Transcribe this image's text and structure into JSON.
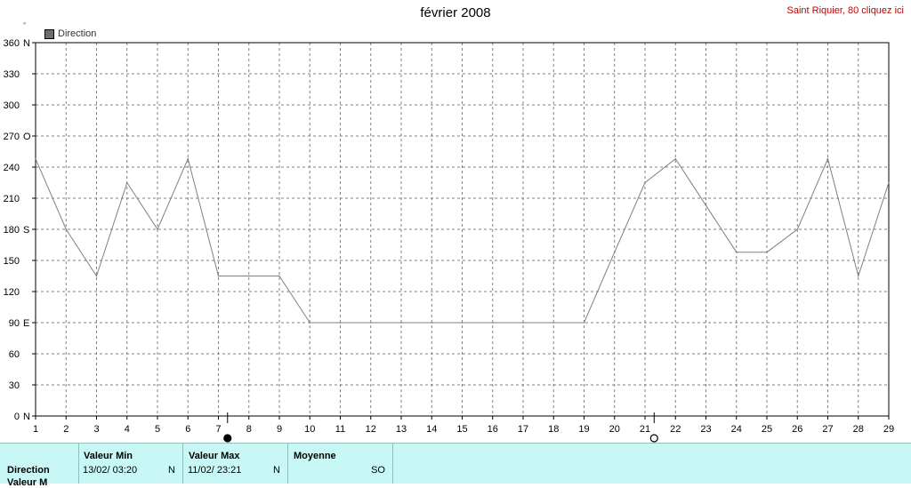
{
  "header": {
    "title": "février 2008",
    "station_link": "Saint Riquier, 80 cliquez ici",
    "degree_symbol": "°"
  },
  "legend": {
    "label": "Direction"
  },
  "chart_data": {
    "type": "line",
    "title": "février 2008",
    "x_ticks": [
      1,
      2,
      3,
      4,
      5,
      6,
      7,
      8,
      9,
      10,
      11,
      12,
      13,
      14,
      15,
      16,
      17,
      18,
      19,
      20,
      21,
      22,
      23,
      24,
      25,
      26,
      27,
      28,
      29
    ],
    "xlim": [
      1,
      29
    ],
    "ylim": [
      0,
      360
    ],
    "y_ticks": [
      {
        "value": 0,
        "label": "0",
        "dir": "N"
      },
      {
        "value": 30,
        "label": "30",
        "dir": ""
      },
      {
        "value": 60,
        "label": "60",
        "dir": ""
      },
      {
        "value": 90,
        "label": "90",
        "dir": "E"
      },
      {
        "value": 120,
        "label": "120",
        "dir": ""
      },
      {
        "value": 150,
        "label": "150",
        "dir": ""
      },
      {
        "value": 180,
        "label": "180",
        "dir": "S"
      },
      {
        "value": 210,
        "label": "210",
        "dir": ""
      },
      {
        "value": 240,
        "label": "240",
        "dir": ""
      },
      {
        "value": 270,
        "label": "270",
        "dir": "O"
      },
      {
        "value": 300,
        "label": "300",
        "dir": ""
      },
      {
        "value": 330,
        "label": "330",
        "dir": ""
      },
      {
        "value": 360,
        "label": "360",
        "dir": "N"
      }
    ],
    "grid": true,
    "legend_position": "top-left",
    "series": [
      {
        "name": "Direction",
        "color": "#808080",
        "points": [
          [
            1,
            248
          ],
          [
            2,
            180
          ],
          [
            3,
            135
          ],
          [
            4,
            225
          ],
          [
            5,
            180
          ],
          [
            6,
            248
          ],
          [
            7,
            135
          ],
          [
            8,
            135
          ],
          [
            9,
            135
          ],
          [
            10,
            90
          ],
          [
            11,
            90
          ],
          [
            12,
            90
          ],
          [
            13,
            90
          ],
          [
            14,
            90
          ],
          [
            15,
            90
          ],
          [
            16,
            90
          ],
          [
            17,
            90
          ],
          [
            18,
            90
          ],
          [
            19,
            90
          ],
          [
            20,
            158
          ],
          [
            21,
            225
          ],
          [
            22,
            248
          ],
          [
            23,
            203
          ],
          [
            24,
            158
          ],
          [
            25,
            158
          ],
          [
            26,
            180
          ],
          [
            27,
            248
          ],
          [
            28,
            135
          ],
          [
            29,
            225
          ]
        ]
      }
    ],
    "markers": [
      {
        "x": 7.3,
        "type": "filled-circle"
      },
      {
        "x": 21.3,
        "type": "open-circle"
      }
    ]
  },
  "stats": {
    "row_labels": [
      "Direction",
      "Valeur M"
    ],
    "min": {
      "header": "Valeur Min",
      "date": "13/02/  03:20",
      "dir": "N"
    },
    "max": {
      "header": "Valeur Max",
      "date": "11/02/  23:21",
      "dir": "N"
    },
    "mean": {
      "header": "Moyenne",
      "dir": "SO"
    }
  },
  "colors": {
    "line": "#808080",
    "grid": "#808080",
    "stats_bg": "#c8f8f6",
    "station_link": "#c00000"
  }
}
